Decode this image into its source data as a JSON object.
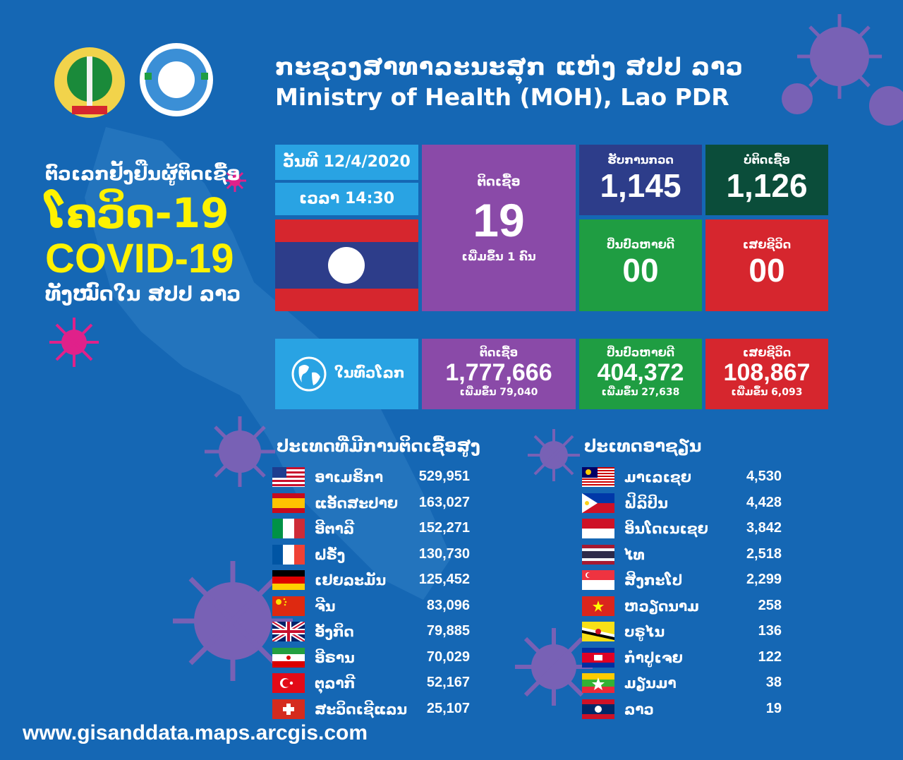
{
  "header": {
    "title_lao": "ກະຊວງສາທາລະນະສຸກ ແຫ່ງ ສປປ ລາວ",
    "title_en": "Ministry of Health (MOH), Lao PDR"
  },
  "left": {
    "line1": "ຕົວເລກຢັ້ງຢືນຜູ້ຕິດເຊື້ອ",
    "line2": "ໂຄວິດ-19",
    "line3": "COVID-19",
    "line4": "ທັງໝົດໃນ ສປປ ລາວ"
  },
  "laos": {
    "date_label": "ວັນທີ 12/4/2020",
    "time_label": "ເວລາ 14:30",
    "infected_label": "ຕິດເຊື້ອ",
    "infected_value": "19",
    "infected_sub": "ເພີ່ມຂຶ້ນ 1 ຄົນ",
    "tested_label": "ຮັບການກວດ",
    "tested_value": "1,145",
    "negative_label": "ບໍ່ຕິດເຊື້ອ",
    "negative_value": "1,126",
    "recovered_label": "ປິ່ນປົວຫາຍດີ",
    "recovered_value": "00",
    "deaths_label": "ເສຍຊີວິດ",
    "deaths_value": "00"
  },
  "world": {
    "label": "ໃນທົ່ວໂລກ",
    "infected_label": "ຕິດເຊື້ອ",
    "infected_value": "1,777,666",
    "infected_sub": "ເພີ່ມຂຶ້ນ 79,040",
    "recovered_label": "ປິ່ນປົວຫາຍດີ",
    "recovered_value": "404,372",
    "recovered_sub": "ເພີ່ມຂຶ້ນ 27,638",
    "deaths_label": "ເສຍຊີວິດ",
    "deaths_value": "108,867",
    "deaths_sub": "ເພີ່ມຂຶ້ນ 6,093"
  },
  "top_countries": {
    "title": "ປະເທດທີ່ມີການຕິດເຊື້ອສູງ",
    "rows": [
      {
        "name": "ອາເມຣິກາ",
        "value": "529,951",
        "flag": "usa"
      },
      {
        "name": "ແອັດສະປາຍ",
        "value": "163,027",
        "flag": "spain"
      },
      {
        "name": "ອີຕາລີ",
        "value": "152,271",
        "flag": "italy"
      },
      {
        "name": "ຝຣັ່ງ",
        "value": "130,730",
        "flag": "france"
      },
      {
        "name": "ເຢຍລະມັນ",
        "value": "125,452",
        "flag": "germany"
      },
      {
        "name": "ຈີນ",
        "value": "83,096",
        "flag": "china"
      },
      {
        "name": "ອັງກິດ",
        "value": "79,885",
        "flag": "uk"
      },
      {
        "name": "ອີຣານ",
        "value": "70,029",
        "flag": "iran"
      },
      {
        "name": "ຕຸລາກີ",
        "value": "52,167",
        "flag": "turkey"
      },
      {
        "name": "ສະວິດເຊີແລນ",
        "value": "25,107",
        "flag": "switzerland"
      }
    ]
  },
  "asean": {
    "title": "ປະເທດອາຊຽນ",
    "rows": [
      {
        "name": "ມາເລເຊຍ",
        "value": "4,530",
        "flag": "malaysia"
      },
      {
        "name": "ຟິລິປິນ",
        "value": "4,428",
        "flag": "philippines"
      },
      {
        "name": "ອິນໂດເນເຊຍ",
        "value": "3,842",
        "flag": "indonesia"
      },
      {
        "name": "ໄທ",
        "value": "2,518",
        "flag": "thailand"
      },
      {
        "name": "ສິງກະໂປ",
        "value": "2,299",
        "flag": "singapore"
      },
      {
        "name": "ຫວຽດນາມ",
        "value": "258",
        "flag": "vietnam"
      },
      {
        "name": "ບຣູໄນ",
        "value": "136",
        "flag": "brunei"
      },
      {
        "name": "ກຳປູເຈຍ",
        "value": "122",
        "flag": "cambodia"
      },
      {
        "name": "ມຽນມາ",
        "value": "38",
        "flag": "myanmar"
      },
      {
        "name": "ລາວ",
        "value": "19",
        "flag": "laos"
      }
    ]
  },
  "footer": {
    "url": "www.gisanddata.maps.arcgis.com"
  },
  "colors": {
    "background": "#1567b4",
    "light_blue": "#29a3e3",
    "purple": "#8a4aa8",
    "navy": "#2d3d8a",
    "dark_green": "#0b4d3a",
    "green": "#1f9d42",
    "red": "#d6262e",
    "yellow": "#fff200"
  }
}
